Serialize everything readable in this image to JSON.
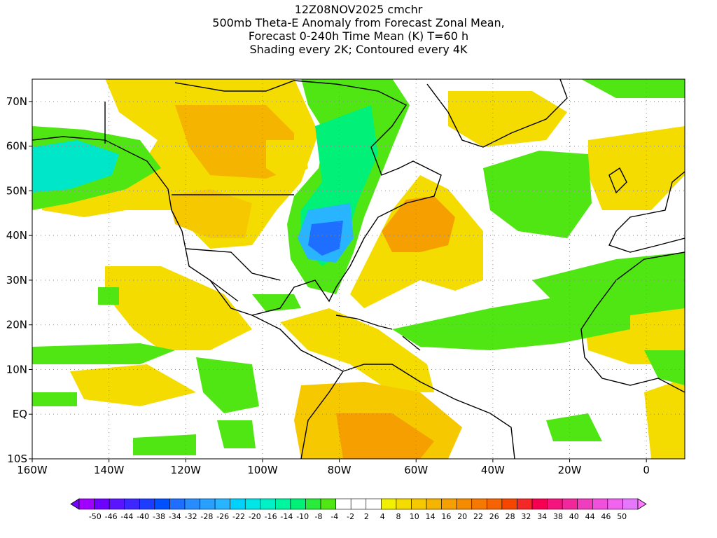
{
  "title": {
    "line1": "12Z08NOV2025 cmchr",
    "line2": "500mb Theta-E Anomaly from Forecast Zonal Mean,",
    "line3": "Forecast 0-240h Time Mean (K) T=60 h",
    "line4": "Shading every 2K; Contoured every 4K"
  },
  "map": {
    "lon_range": [
      -160,
      10
    ],
    "lat_range": [
      -10,
      75
    ],
    "lon_ticks": [
      {
        "lon": -160,
        "label": "160W"
      },
      {
        "lon": -140,
        "label": "140W"
      },
      {
        "lon": -120,
        "label": "120W"
      },
      {
        "lon": -100,
        "label": "100W"
      },
      {
        "lon": -80,
        "label": "80W"
      },
      {
        "lon": -60,
        "label": "60W"
      },
      {
        "lon": -40,
        "label": "40W"
      },
      {
        "lon": -20,
        "label": "20W"
      },
      {
        "lon": 0,
        "label": "0"
      }
    ],
    "lat_ticks": [
      {
        "lat": 70,
        "label": "70N"
      },
      {
        "lat": 60,
        "label": "60N"
      },
      {
        "lat": 50,
        "label": "50N"
      },
      {
        "lat": 40,
        "label": "40N"
      },
      {
        "lat": 30,
        "label": "30N"
      },
      {
        "lat": 20,
        "label": "20N"
      },
      {
        "lat": 10,
        "label": "10N"
      },
      {
        "lat": 0,
        "label": "EQ"
      },
      {
        "lat": -10,
        "label": "10S"
      }
    ],
    "grid": true
  },
  "colorbar": {
    "labels": [
      "-50",
      "-46",
      "-44",
      "-40",
      "-38",
      "-34",
      "-32",
      "-28",
      "-26",
      "-22",
      "-20",
      "-16",
      "-14",
      "-10",
      "-8",
      "-4",
      "-2",
      "2",
      "4",
      "8",
      "10",
      "14",
      "16",
      "20",
      "22",
      "26",
      "28",
      "32",
      "34",
      "38",
      "40",
      "44",
      "46",
      "50"
    ],
    "colors": [
      "#a000ff",
      "#6e00ff",
      "#5a14ff",
      "#3c28ff",
      "#1e3cff",
      "#0050ff",
      "#1e6eff",
      "#288cff",
      "#28a0ff",
      "#28b4ff",
      "#00d2ff",
      "#00e6e6",
      "#00f0c8",
      "#00f5a0",
      "#00f078",
      "#28eb3c",
      "#50e614",
      "#ffffff",
      "#ffffff",
      "#ffffff",
      "#f0f000",
      "#f5dc00",
      "#f5c800",
      "#f5b400",
      "#f5a000",
      "#f58c00",
      "#f57800",
      "#f56400",
      "#f54600",
      "#f52828",
      "#f50050",
      "#f5147d",
      "#f0289b",
      "#f03cbe",
      "#f050dc",
      "#f064f0",
      "#e678ff"
    ],
    "end_left_color": "#7800ff",
    "end_right_color": "#ff78ff"
  }
}
